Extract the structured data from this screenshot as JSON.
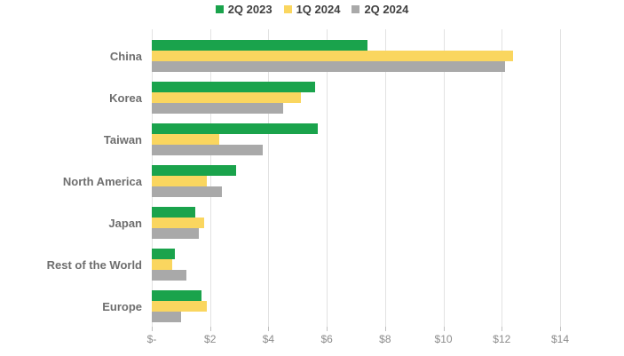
{
  "chart_data": {
    "type": "bar",
    "orientation": "horizontal",
    "title": "",
    "xlabel": "",
    "ylabel": "",
    "xlim": [
      0,
      14
    ],
    "x_tick_values": [
      0,
      2,
      4,
      6,
      8,
      10,
      12,
      14
    ],
    "x_tick_labels": [
      "$-",
      "$2",
      "$4",
      "$6",
      "$8",
      "$10",
      "$12",
      "$14"
    ],
    "grid": "vertical-on",
    "legend_position": "top-center",
    "categories": [
      "China",
      "Korea",
      "Taiwan",
      "North America",
      "Japan",
      "Rest of the World",
      "Europe"
    ],
    "series": [
      {
        "name": "2Q 2023",
        "color": "#1aa34c",
        "values": [
          7.4,
          5.6,
          5.7,
          2.9,
          1.5,
          0.8,
          1.7
        ]
      },
      {
        "name": "1Q 2024",
        "color": "#fad65f",
        "values": [
          12.4,
          5.1,
          2.3,
          1.9,
          1.8,
          0.7,
          1.9
        ]
      },
      {
        "name": "2Q 2024",
        "color": "#a9a9a9",
        "values": [
          12.1,
          4.5,
          3.8,
          2.4,
          1.6,
          1.2,
          1.0
        ]
      }
    ],
    "colors": {
      "gridline": "#e2e2e2",
      "tick": "#bfbfbf",
      "category_label": "#6e6e6e",
      "tick_label": "#8c8c8c",
      "legend_label": "#3f3f3f",
      "background": "#ffffff"
    }
  }
}
